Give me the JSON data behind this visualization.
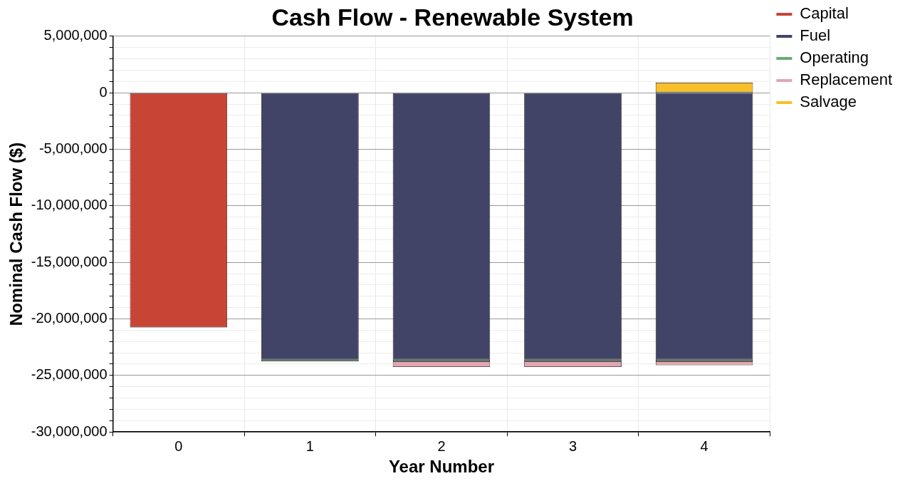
{
  "chart_data": {
    "type": "bar",
    "title": "Cash Flow - Renewable System",
    "xlabel": "Year Number",
    "ylabel": "Nominal Cash Flow ($)",
    "categories": [
      "0",
      "1",
      "2",
      "3",
      "4"
    ],
    "stacked": true,
    "grid": true,
    "legend": "right",
    "ylim": [
      -30000000,
      5000000
    ],
    "yticks": [
      {
        "value": -30000000,
        "label": "-30,000,000"
      },
      {
        "value": -29000000,
        "label": null
      },
      {
        "value": -28000000,
        "label": null
      },
      {
        "value": -27000000,
        "label": null
      },
      {
        "value": -26000000,
        "label": null
      },
      {
        "value": -25000000,
        "label": "-25,000,000"
      },
      {
        "value": -24000000,
        "label": null
      },
      {
        "value": -23000000,
        "label": null
      },
      {
        "value": -22000000,
        "label": null
      },
      {
        "value": -21000000,
        "label": null
      },
      {
        "value": -20000000,
        "label": "-20,000,000"
      },
      {
        "value": -19000000,
        "label": null
      },
      {
        "value": -18000000,
        "label": null
      },
      {
        "value": -17000000,
        "label": null
      },
      {
        "value": -16000000,
        "label": null
      },
      {
        "value": -15000000,
        "label": "-15,000,000"
      },
      {
        "value": -14000000,
        "label": null
      },
      {
        "value": -13000000,
        "label": null
      },
      {
        "value": -12000000,
        "label": null
      },
      {
        "value": -11000000,
        "label": null
      },
      {
        "value": -10000000,
        "label": "-10,000,000"
      },
      {
        "value": -9000000,
        "label": null
      },
      {
        "value": -8000000,
        "label": null
      },
      {
        "value": -7000000,
        "label": null
      },
      {
        "value": -6000000,
        "label": null
      },
      {
        "value": -5000000,
        "label": "-5,000,000"
      },
      {
        "value": -4000000,
        "label": null
      },
      {
        "value": -3000000,
        "label": null
      },
      {
        "value": -2000000,
        "label": null
      },
      {
        "value": -1000000,
        "label": null
      },
      {
        "value": 0,
        "label": "0"
      },
      {
        "value": 1000000,
        "label": null
      },
      {
        "value": 2000000,
        "label": null
      },
      {
        "value": 3000000,
        "label": null
      },
      {
        "value": 4000000,
        "label": null
      },
      {
        "value": 5000000,
        "label": "5,000,000"
      }
    ],
    "series": [
      {
        "name": "Capital",
        "color": "#c84536",
        "values": [
          -20750000,
          null,
          null,
          null,
          null
        ]
      },
      {
        "name": "Fuel",
        "color": "#414466",
        "values": [
          null,
          -23600000,
          -23600000,
          -23600000,
          -23600000
        ]
      },
      {
        "name": "Operating",
        "color": "#6aaa78",
        "values": [
          null,
          -150000,
          -150000,
          -150000,
          -150000
        ]
      },
      {
        "name": "Replacement",
        "color": "#e2a5b4",
        "values": [
          null,
          null,
          -500000,
          -500000,
          -350000
        ]
      },
      {
        "name": "Salvage",
        "color": "#f7c02a",
        "values": [
          null,
          null,
          null,
          null,
          900000
        ]
      }
    ]
  }
}
